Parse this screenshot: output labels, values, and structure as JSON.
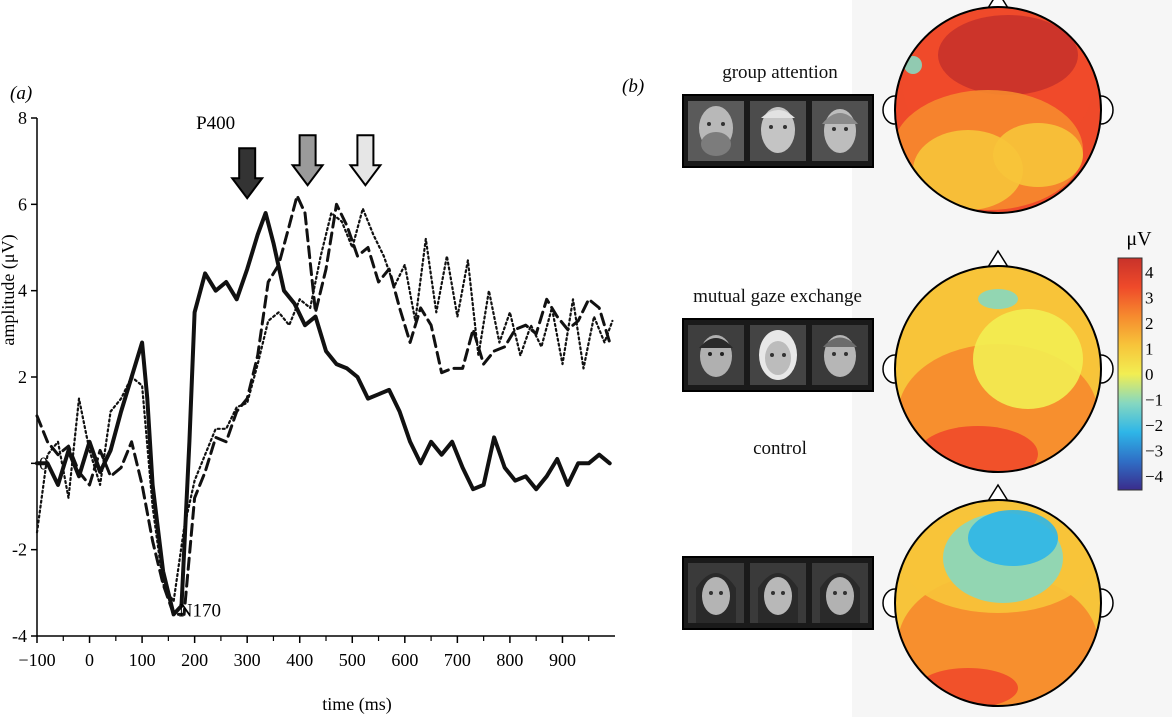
{
  "chart_data": [
    {
      "type": "line",
      "panel_label": "(a)",
      "xlabel": "time (ms)",
      "ylabel": "amplitude (μV)",
      "xlim": [
        -100,
        1000
      ],
      "ylim": [
        -4,
        8
      ],
      "x_ticks": [
        -100,
        0,
        100,
        200,
        300,
        400,
        500,
        600,
        700,
        800,
        900
      ],
      "y_ticks": [
        -4,
        -2,
        2,
        4,
        6,
        8
      ],
      "y_zero_label": "0",
      "grid": false,
      "annotations": [
        {
          "text": "P400",
          "x": 240,
          "y": 7.75
        },
        {
          "text": "N170",
          "x": 210,
          "y": -3.55
        }
      ],
      "arrows": [
        {
          "x": 300,
          "y_top": 7.3,
          "color": "#333333"
        },
        {
          "x": 415,
          "y_top": 7.6,
          "color": "#9a9a9a"
        },
        {
          "x": 525,
          "y_top": 7.6,
          "color": "#e6e6e6"
        }
      ],
      "series": [
        {
          "style": "solid",
          "x": [
            -100,
            -80,
            -60,
            -40,
            -20,
            0,
            20,
            40,
            60,
            80,
            100,
            110,
            120,
            140,
            160,
            175,
            190,
            200,
            220,
            240,
            260,
            280,
            300,
            320,
            335,
            350,
            370,
            390,
            410,
            430,
            450,
            470,
            490,
            510,
            530,
            550,
            570,
            590,
            610,
            630,
            650,
            670,
            690,
            710,
            730,
            750,
            770,
            790,
            810,
            830,
            850,
            870,
            890,
            910,
            930,
            950,
            970,
            990
          ],
          "y": [
            0,
            0,
            -0.5,
            0.3,
            -0.3,
            0.5,
            -0.2,
            0.3,
            1.2,
            2,
            2.8,
            1.5,
            -0.5,
            -2.5,
            -3.5,
            -3.3,
            0.5,
            3.5,
            4.4,
            4,
            4.2,
            3.8,
            4.5,
            5.3,
            5.8,
            5.1,
            4,
            3.7,
            3.2,
            3.4,
            2.6,
            2.3,
            2.2,
            2,
            1.5,
            1.6,
            1.7,
            1.2,
            0.5,
            0,
            0.5,
            0.2,
            0.5,
            -0.1,
            -0.6,
            -0.5,
            0.6,
            -0.1,
            -0.4,
            -0.3,
            -0.6,
            -0.3,
            0.1,
            -0.5,
            0,
            0,
            0.2,
            0
          ]
        },
        {
          "style": "dashed",
          "x": [
            -100,
            -80,
            -60,
            -40,
            -20,
            0,
            20,
            40,
            60,
            80,
            100,
            120,
            140,
            160,
            180,
            200,
            220,
            240,
            260,
            280,
            300,
            320,
            340,
            360,
            380,
            395,
            410,
            430,
            450,
            470,
            490,
            510,
            530,
            550,
            570,
            590,
            610,
            630,
            650,
            670,
            690,
            710,
            730,
            750,
            770,
            790,
            810,
            830,
            850,
            870,
            890,
            910,
            930,
            950,
            970,
            990
          ],
          "y": [
            1.1,
            0.5,
            0.2,
            0.4,
            -0.2,
            -0.5,
            0.3,
            -0.3,
            -0.1,
            0.5,
            -0.5,
            -1.8,
            -2.8,
            -3.5,
            -3.5,
            -0.8,
            -0.2,
            0.6,
            0.5,
            1.2,
            1.5,
            2.5,
            4.2,
            4.6,
            5.5,
            6.2,
            5.8,
            3.5,
            4.5,
            6,
            5.5,
            4.8,
            5,
            4.2,
            4.5,
            3.6,
            2.8,
            3.6,
            3.2,
            2.1,
            2.2,
            2.2,
            3.1,
            2.3,
            2.6,
            2.7,
            3.1,
            3.2,
            3,
            3.8,
            3.4,
            3.1,
            3.3,
            3.8,
            3.6,
            2.8
          ]
        },
        {
          "style": "dotted",
          "x": [
            -100,
            -80,
            -60,
            -40,
            -20,
            0,
            20,
            40,
            60,
            80,
            100,
            120,
            140,
            160,
            180,
            200,
            220,
            240,
            260,
            280,
            300,
            320,
            340,
            360,
            380,
            400,
            420,
            440,
            460,
            480,
            500,
            520,
            540,
            560,
            580,
            600,
            620,
            640,
            660,
            680,
            700,
            720,
            740,
            760,
            780,
            800,
            820,
            840,
            860,
            880,
            900,
            920,
            940,
            960,
            980,
            995
          ],
          "y": [
            -1.6,
            0.2,
            0.5,
            -0.8,
            1.5,
            0.3,
            -0.5,
            1.2,
            1.5,
            2,
            1.8,
            -1,
            -2.8,
            -3.2,
            -1.5,
            -0.4,
            0.2,
            0.8,
            0.8,
            1.3,
            1.4,
            2.3,
            3.3,
            3.5,
            3.2,
            3.8,
            3.6,
            4.8,
            5.8,
            5.6,
            5,
            5.9,
            5.3,
            4.8,
            4.1,
            4.6,
            3.3,
            5.2,
            3.5,
            4.8,
            3.4,
            4.7,
            2.5,
            4,
            2.8,
            3.5,
            2.5,
            3.2,
            2.7,
            3.6,
            2.3,
            3.8,
            2.2,
            3.4,
            2.8,
            3.3
          ]
        }
      ]
    },
    {
      "type": "heatmap",
      "panel_label": "(b)",
      "conditions": [
        "group attention",
        "mutual gaze exchange",
        "control"
      ],
      "colorbar_label": "μV",
      "colorbar_ticks": [
        "4",
        "3",
        "2",
        "1",
        "0",
        "−1",
        "−2",
        "−3",
        "−4"
      ],
      "colorbar_range": [
        -4,
        4
      ],
      "colorbar_colors": [
        "#c8322a",
        "#ef4a2a",
        "#f68a2e",
        "#f7c43a",
        "#f2ee52",
        "#86d8c0",
        "#2eb6e8",
        "#2f6fc6",
        "#3a2c8c"
      ]
    }
  ]
}
